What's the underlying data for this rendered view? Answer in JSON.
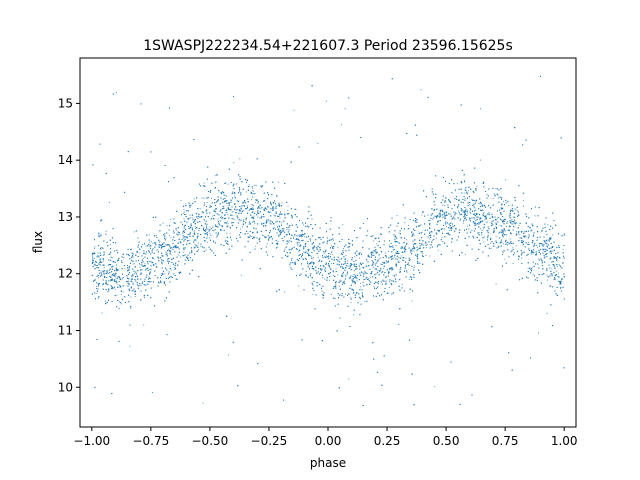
{
  "chart_data": {
    "type": "scatter",
    "title": "1SWASPJ222234.54+221607.3 Period 23596.15625s",
    "xlabel": "phase",
    "ylabel": "flux",
    "xlim": [
      -1.05,
      1.05
    ],
    "ylim": [
      9.3,
      15.8
    ],
    "xticks": [
      -1.0,
      -0.75,
      -0.5,
      -0.25,
      0.0,
      0.25,
      0.5,
      0.75,
      1.0
    ],
    "xtick_labels": [
      "−1.00",
      "−0.75",
      "−0.50",
      "−0.25",
      "0.00",
      "0.25",
      "0.50",
      "0.75",
      "1.00"
    ],
    "yticks": [
      10,
      11,
      12,
      13,
      14,
      15
    ],
    "ytick_labels": [
      "10",
      "11",
      "12",
      "13",
      "14",
      "15"
    ],
    "grid": false,
    "legend": "none",
    "marker_color": "#1f77b4",
    "series": [
      {
        "phase_range": [
          -1.0,
          1.0
        ],
        "trend": {
          "x": [
            -1.0,
            -0.85,
            -0.7,
            -0.55,
            -0.4,
            -0.25,
            -0.1,
            0.05,
            0.2,
            0.35,
            0.5,
            0.6,
            0.75,
            0.9,
            1.0
          ],
          "y": [
            12.1,
            12.0,
            12.3,
            12.85,
            13.15,
            13.0,
            12.45,
            12.0,
            12.1,
            12.5,
            13.0,
            13.1,
            12.85,
            12.4,
            12.1
          ]
        },
        "core_scatter": 0.3,
        "outlier_range": [
          9.6,
          15.5
        ]
      }
    ]
  }
}
